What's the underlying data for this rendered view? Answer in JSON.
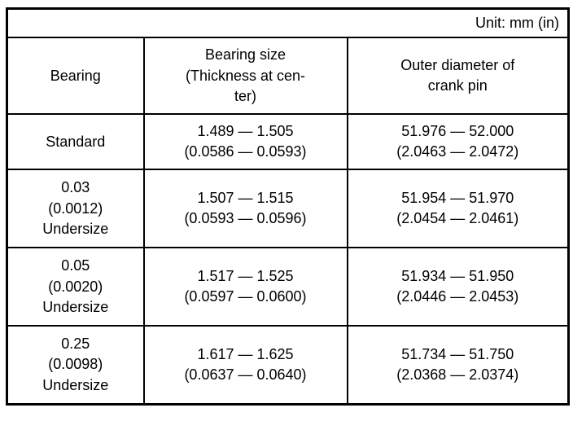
{
  "unit_label": "Unit: mm (in)",
  "table": {
    "columns": [
      {
        "label": "Bearing"
      },
      {
        "label": "Bearing size\n(Thickness at cen-\nter)"
      },
      {
        "label": "Outer diameter of\ncrank pin"
      }
    ],
    "rows": [
      {
        "bearing": "Standard",
        "bearing_size": "1.489 — 1.505\n(0.0586 — 0.0593)",
        "crank_pin_od": "51.976 — 52.000\n(2.0463 — 2.0472)"
      },
      {
        "bearing": "0.03\n(0.0012)\nUndersize",
        "bearing_size": "1.507 — 1.515\n(0.0593 — 0.0596)",
        "crank_pin_od": "51.954 — 51.970\n(2.0454 — 2.0461)"
      },
      {
        "bearing": "0.05\n(0.0020)\nUndersize",
        "bearing_size": "1.517 — 1.525\n(0.0597 — 0.0600)",
        "crank_pin_od": "51.934 — 51.950\n(2.0446 — 2.0453)"
      },
      {
        "bearing": "0.25\n(0.0098)\nUndersize",
        "bearing_size": "1.617 — 1.625\n(0.0637 — 0.0640)",
        "crank_pin_od": "51.734 — 51.750\n(2.0368 — 2.0374)"
      }
    ]
  }
}
